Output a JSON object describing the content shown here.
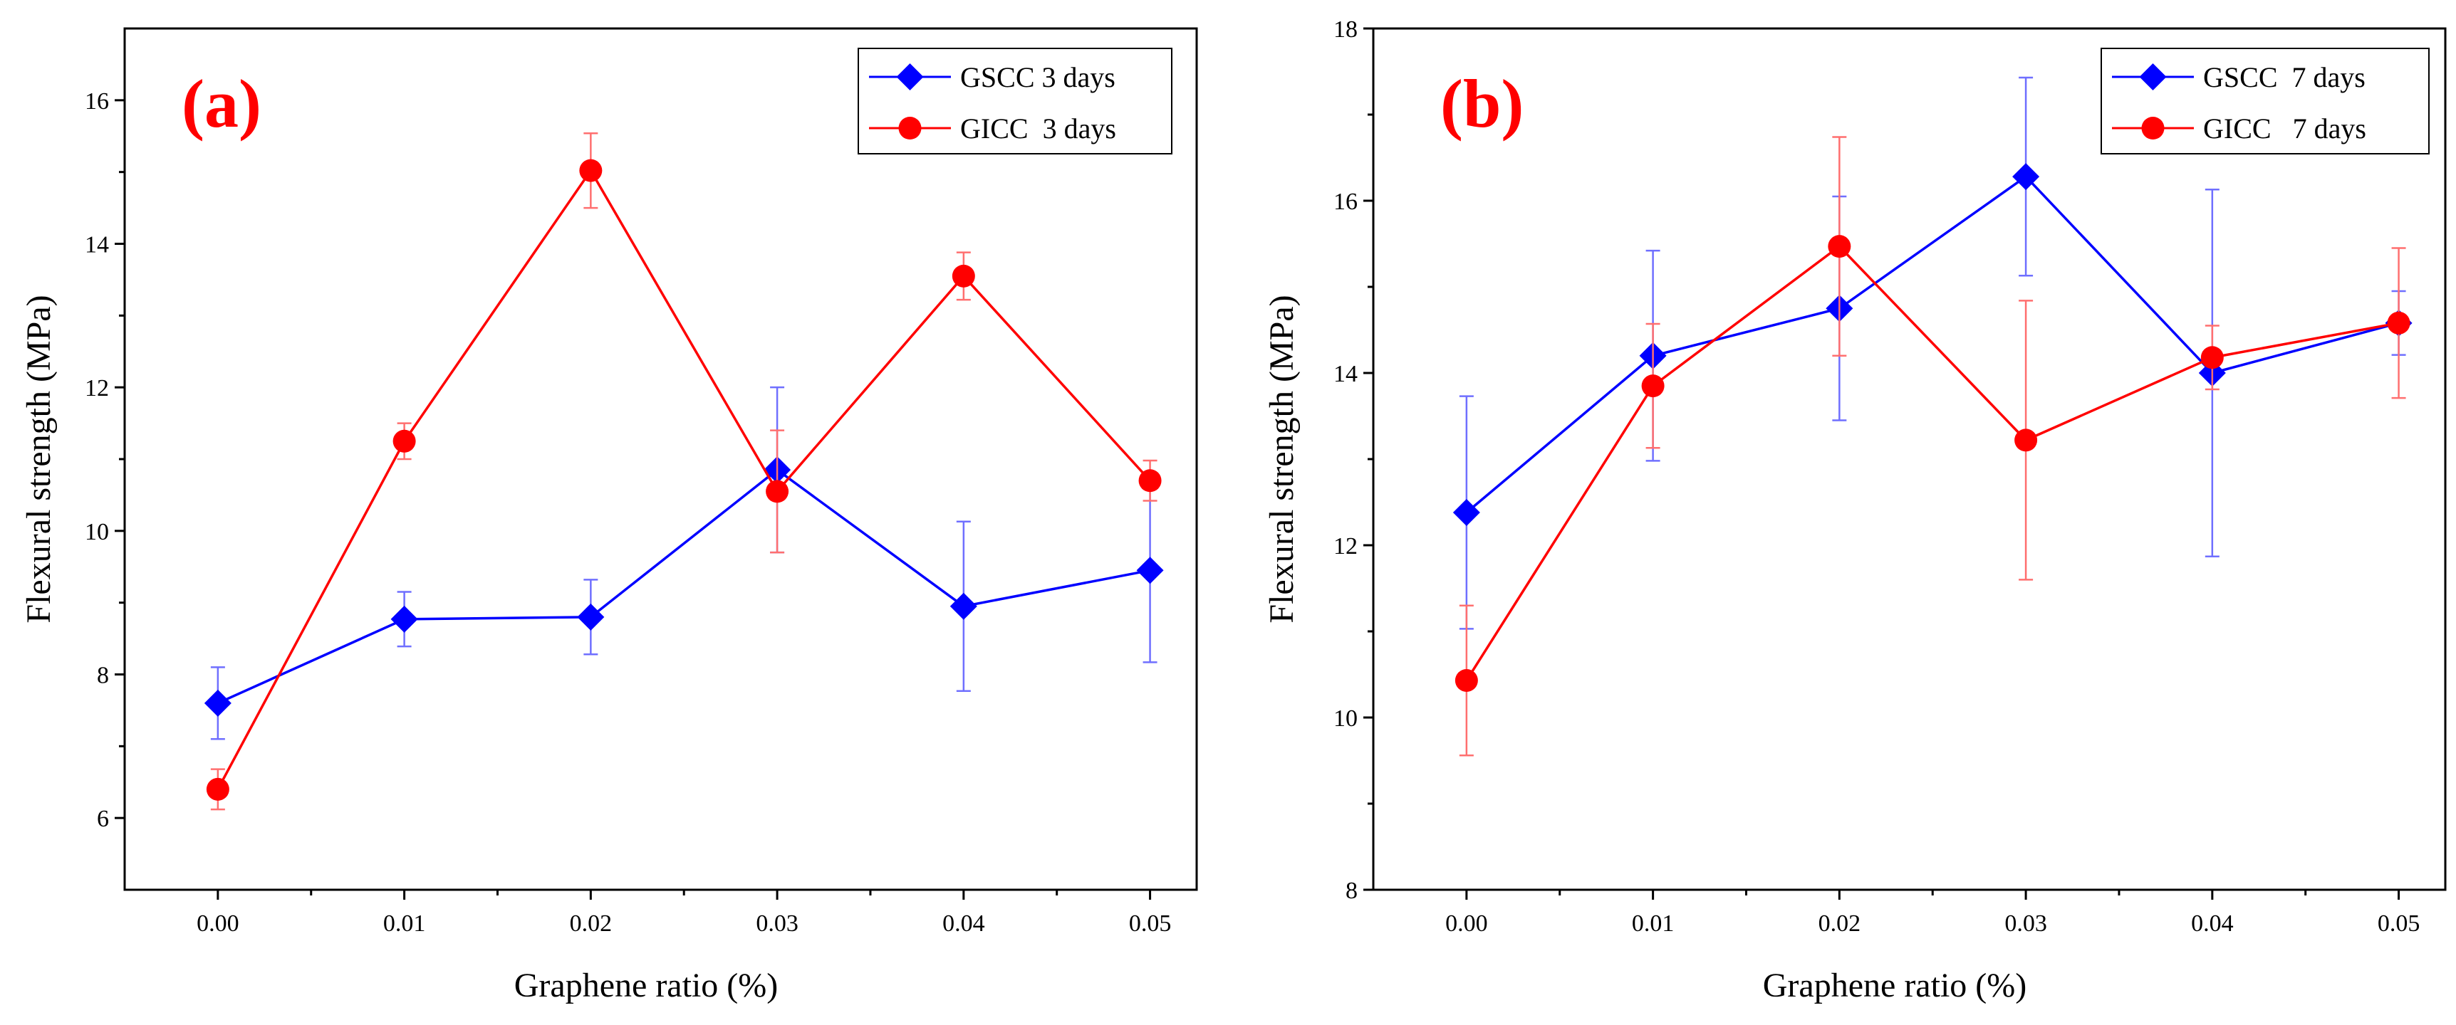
{
  "chart_data": [
    {
      "type": "line",
      "panel_label": "(a)",
      "xlabel": "Graphene ratio (%)",
      "ylabel": "Flexural strength (MPa)",
      "x": [
        0.0,
        0.01,
        0.02,
        0.03,
        0.04,
        0.05
      ],
      "x_tick_labels": [
        "0.00",
        "0.01",
        "0.02",
        "0.03",
        "0.04",
        "0.05"
      ],
      "xlim": [
        -0.005,
        0.0525
      ],
      "ylim": [
        5,
        17
      ],
      "y_ticks": [
        6,
        8,
        10,
        12,
        14,
        16
      ],
      "y_tick_labels": [
        "6",
        "8",
        "10",
        "12",
        "14",
        "16"
      ],
      "legend_position": "top-right",
      "series": [
        {
          "name": "GSCC 3 days",
          "color": "#0000ff",
          "marker": "diamond",
          "values": [
            7.6,
            8.77,
            8.8,
            10.85,
            8.95,
            9.45
          ],
          "errors": [
            0.5,
            0.38,
            0.52,
            1.15,
            1.18,
            1.28
          ]
        },
        {
          "name": "GICC  3 days",
          "color": "#ff0000",
          "marker": "circle",
          "values": [
            6.4,
            11.25,
            15.02,
            10.55,
            13.55,
            10.7
          ],
          "errors": [
            0.28,
            0.25,
            0.52,
            0.85,
            0.33,
            0.28
          ]
        }
      ]
    },
    {
      "type": "line",
      "panel_label": "(b)",
      "xlabel": "Graphene ratio (%)",
      "ylabel": "Flexural strength (MPa)",
      "x": [
        0.0,
        0.01,
        0.02,
        0.03,
        0.04,
        0.05
      ],
      "x_tick_labels": [
        "0.00",
        "0.01",
        "0.02",
        "0.03",
        "0.04",
        "0.05"
      ],
      "xlim": [
        -0.005,
        0.0525
      ],
      "ylim": [
        8,
        18
      ],
      "y_ticks": [
        8,
        10,
        12,
        14,
        16,
        18
      ],
      "y_tick_labels": [
        "8",
        "10",
        "12",
        "14",
        "16",
        "18"
      ],
      "legend_position": "top-right",
      "series": [
        {
          "name": "GSCC  7 days",
          "color": "#0000ff",
          "marker": "diamond",
          "values": [
            12.38,
            14.2,
            14.75,
            16.28,
            14.0,
            14.58
          ],
          "errors": [
            1.35,
            1.22,
            1.3,
            1.15,
            2.13,
            0.37
          ]
        },
        {
          "name": "GICC   7 days",
          "color": "#ff0000",
          "marker": "circle",
          "values": [
            10.43,
            13.85,
            15.47,
            13.22,
            14.18,
            14.58
          ],
          "errors": [
            0.87,
            0.72,
            1.27,
            1.62,
            0.37,
            0.87
          ]
        }
      ]
    }
  ]
}
